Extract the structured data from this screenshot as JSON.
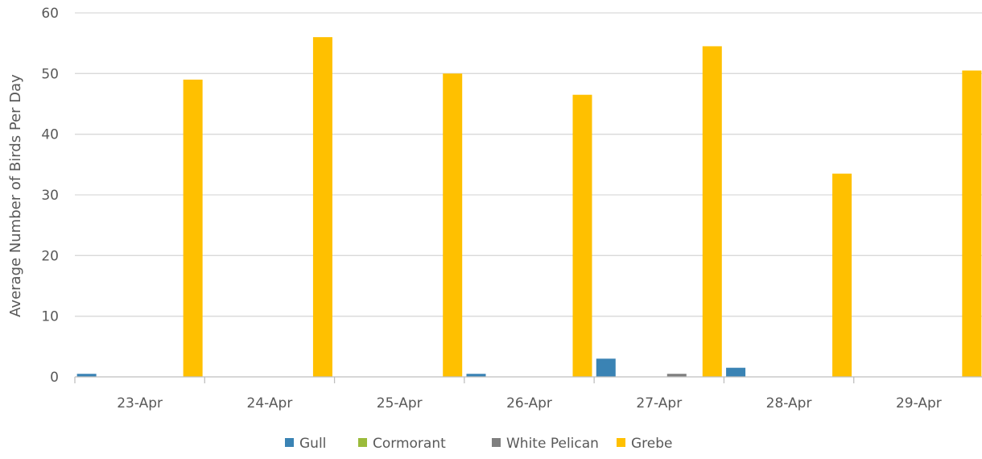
{
  "chart_data": {
    "type": "bar",
    "title": "",
    "xlabel": "",
    "ylabel": "Average Number of Birds Per Day",
    "ylim": [
      0,
      60
    ],
    "ytick_step": 10,
    "grid": true,
    "legend_position": "bottom",
    "categories": [
      "23-Apr",
      "24-Apr",
      "25-Apr",
      "26-Apr",
      "27-Apr",
      "28-Apr",
      "29-Apr"
    ],
    "series": [
      {
        "name": "Gull",
        "color": "#3a83b4",
        "values": [
          0.5,
          0,
          0,
          0.5,
          3,
          1.5,
          0
        ]
      },
      {
        "name": "Cormorant",
        "color": "#9bbb3b",
        "values": [
          0,
          0,
          0,
          0,
          0,
          0,
          0
        ]
      },
      {
        "name": "White Pelican",
        "color": "#7f7f7f",
        "values": [
          0,
          0,
          0,
          0,
          0.5,
          0,
          0
        ]
      },
      {
        "name": "Grebe",
        "color": "#ffc000",
        "values": [
          49,
          56,
          50,
          46.5,
          54.5,
          33.5,
          50.5
        ]
      }
    ]
  }
}
